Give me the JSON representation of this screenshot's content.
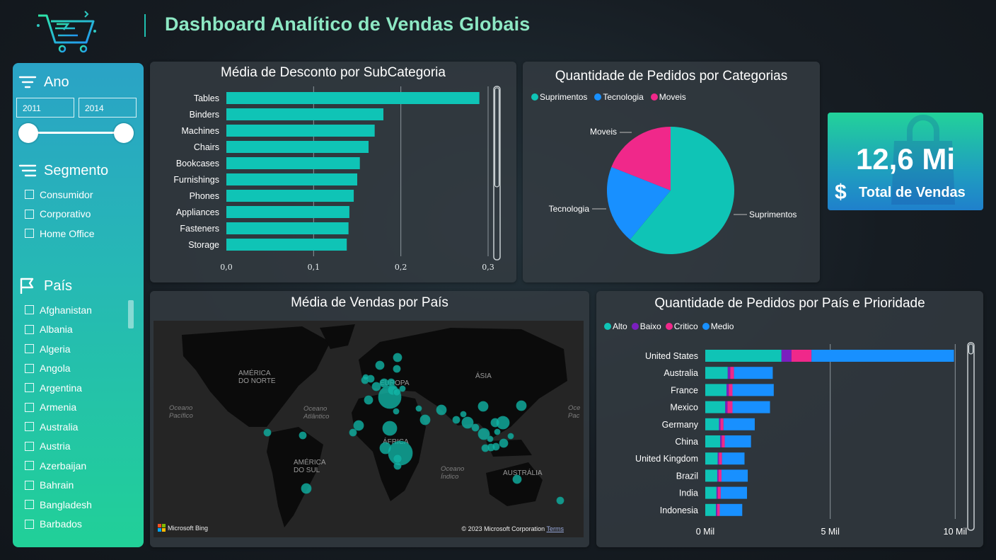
{
  "header": {
    "title": "Dashboard Analítico de Vendas Globais"
  },
  "filters": {
    "ano": {
      "label": "Ano",
      "from": "2011",
      "to": "2014"
    },
    "segmento": {
      "label": "Segmento",
      "options": [
        "Consumidor",
        "Corporativo",
        "Home Office"
      ]
    },
    "pais": {
      "label": "País",
      "options": [
        "Afghanistan",
        "Albania",
        "Algeria",
        "Angola",
        "Argentina",
        "Armenia",
        "Australia",
        "Austria",
        "Azerbaijan",
        "Bahrain",
        "Bangladesh",
        "Barbados"
      ]
    }
  },
  "kpi": {
    "value": "12,6 Mi",
    "label": "Total de Vendas",
    "currency": "$"
  },
  "colors": {
    "teal": "#0fc4b6",
    "blue": "#1890ff",
    "pink": "#f0288a",
    "purple": "#7a1fbf"
  },
  "map": {
    "title": "Média de Vendas por País",
    "labels": [
      "AMÉRICA DO NORTE",
      "EUROPA",
      "ÁSIA",
      "ÁFRICA",
      "AMÉRICA DO SUL",
      "AUSTRÁLIA"
    ],
    "oceans": [
      "Oceano Pacífico",
      "Oceano Atlântico",
      "Oceano Índico"
    ],
    "ocean_east_edge": "Oce Pac",
    "attribution": "Microsoft Bing",
    "copyright": "© 2023 Microsoft Corporation",
    "terms": "Terms"
  },
  "chart_data": [
    {
      "type": "bar",
      "orientation": "horizontal",
      "title": "Média de Desconto por SubCategoria",
      "categories": [
        "Tables",
        "Binders",
        "Machines",
        "Chairs",
        "Bookcases",
        "Furnishings",
        "Phones",
        "Appliances",
        "Fasteners",
        "Storage"
      ],
      "values": [
        0.29,
        0.18,
        0.17,
        0.163,
        0.153,
        0.15,
        0.146,
        0.141,
        0.14,
        0.138
      ],
      "xlim": [
        0,
        0.3
      ],
      "xticks": [
        "0,0",
        "0,1",
        "0,2",
        "0,3"
      ],
      "color": "#0fc4b6"
    },
    {
      "type": "pie",
      "title": "Quantidade de Pedidos por Categorias",
      "labels": [
        "Suprimentos",
        "Tecnologia",
        "Moveis"
      ],
      "values": [
        61,
        20,
        19
      ],
      "colors": [
        "#0fc4b6",
        "#1890ff",
        "#f0288a"
      ]
    },
    {
      "type": "bar",
      "orientation": "horizontal",
      "stacked": true,
      "title": "Quantidade de Pedidos por País e Prioridade",
      "categories": [
        "United States",
        "Australia",
        "France",
        "Mexico",
        "Germany",
        "China",
        "United Kingdom",
        "Brazil",
        "India",
        "Indonesia"
      ],
      "series": [
        {
          "name": "Alto",
          "color": "#0fc4b6",
          "values": [
            3050,
            900,
            850,
            800,
            550,
            600,
            500,
            480,
            450,
            430
          ]
        },
        {
          "name": "Baixo",
          "color": "#7a1fbf",
          "values": [
            400,
            100,
            90,
            90,
            60,
            60,
            50,
            50,
            50,
            50
          ]
        },
        {
          "name": "Critico",
          "color": "#f0288a",
          "values": [
            800,
            150,
            150,
            200,
            120,
            120,
            120,
            120,
            120,
            100
          ]
        },
        {
          "name": "Medio",
          "color": "#1890ff",
          "values": [
            5700,
            1550,
            1650,
            1500,
            1250,
            1050,
            900,
            1050,
            1050,
            900
          ]
        }
      ],
      "xlim": [
        0,
        10500
      ],
      "xticks": [
        {
          "value": 0,
          "label": "0 Mil"
        },
        {
          "value": 5000,
          "label": "5 Mil"
        },
        {
          "value": 10000,
          "label": "10 Mil"
        }
      ]
    }
  ]
}
